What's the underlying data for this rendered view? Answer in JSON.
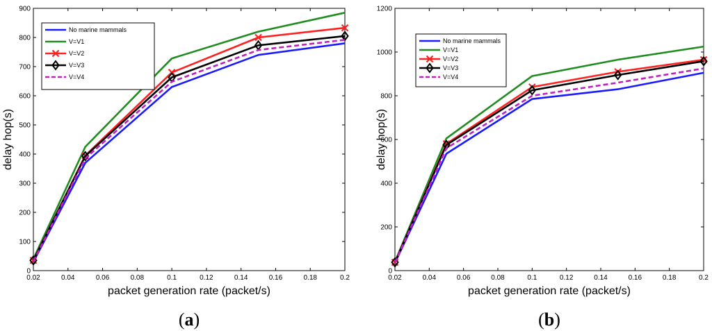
{
  "chart_data": [
    {
      "type": "line",
      "panel": "a",
      "caption": {
        "open": "(",
        "letter": "a",
        "close": ")"
      },
      "xlabel": "packet generation rate (packet/s)",
      "ylabel": "delay hop(s)",
      "xlim": [
        0.02,
        0.2
      ],
      "ylim": [
        0,
        900
      ],
      "xticks": [
        0.02,
        0.04,
        0.06,
        0.08,
        0.1,
        0.12,
        0.14,
        0.16,
        0.18,
        0.2
      ],
      "xtick_labels": [
        "0.02",
        "0.04",
        "0.06",
        "0.08",
        "0.1",
        "0.12",
        "0.14",
        "0.16",
        "0.18",
        "0.2"
      ],
      "yticks": [
        0,
        100,
        200,
        300,
        400,
        500,
        600,
        700,
        800,
        900
      ],
      "ytick_labels": [
        "0",
        "100",
        "200",
        "300",
        "400",
        "500",
        "600",
        "700",
        "800",
        "900"
      ],
      "x": [
        0.02,
        0.05,
        0.1,
        0.15,
        0.2
      ],
      "legend_position": "top-left",
      "series": [
        {
          "name": "No marine mammals",
          "color": "#1a1aff",
          "style": "solid",
          "marker": "none",
          "values": [
            30,
            370,
            630,
            740,
            780
          ]
        },
        {
          "name": "V=V1",
          "color": "#1f8c1f",
          "style": "solid",
          "marker": "none",
          "values": [
            40,
            425,
            728,
            820,
            885
          ]
        },
        {
          "name": "V=V2",
          "color": "#ff2020",
          "style": "solid",
          "marker": "x",
          "values": [
            35,
            395,
            680,
            800,
            833
          ]
        },
        {
          "name": "V=V3",
          "color": "#000000",
          "style": "solid",
          "marker": "diamond",
          "values": [
            35,
            393,
            663,
            773,
            805
          ]
        },
        {
          "name": "V=V4",
          "color": "#c020c0",
          "style": "dashed",
          "marker": "none",
          "values": [
            32,
            385,
            648,
            757,
            792
          ]
        }
      ]
    },
    {
      "type": "line",
      "panel": "b",
      "caption": {
        "open": "(",
        "letter": "b",
        "close": ")"
      },
      "xlabel": "packet generation rate (packet/s)",
      "ylabel": "delay hop(s)",
      "xlim": [
        0.02,
        0.2
      ],
      "ylim": [
        0,
        1200
      ],
      "xticks": [
        0.02,
        0.04,
        0.06,
        0.08,
        0.1,
        0.12,
        0.14,
        0.16,
        0.18,
        0.2
      ],
      "xtick_labels": [
        "0.02",
        "0.04",
        "0.06",
        "0.08",
        "0.1",
        "0.12",
        "0.14",
        "0.16",
        "0.18",
        "0.2"
      ],
      "yticks": [
        0,
        200,
        400,
        600,
        800,
        1000,
        1200
      ],
      "ytick_labels": [
        "0",
        "200",
        "400",
        "600",
        "800",
        "1000",
        "1200"
      ],
      "x": [
        0.02,
        0.05,
        0.1,
        0.15,
        0.2
      ],
      "legend_position": "top-left",
      "series": [
        {
          "name": "No marine mammals",
          "color": "#1a1aff",
          "style": "solid",
          "marker": "none",
          "values": [
            35,
            535,
            785,
            830,
            905
          ]
        },
        {
          "name": "V=V1",
          "color": "#1f8c1f",
          "style": "solid",
          "marker": "none",
          "values": [
            40,
            605,
            890,
            965,
            1025
          ]
        },
        {
          "name": "V=V2",
          "color": "#ff2020",
          "style": "solid",
          "marker": "x",
          "values": [
            38,
            580,
            840,
            910,
            965
          ]
        },
        {
          "name": "V=V3",
          "color": "#000000",
          "style": "solid",
          "marker": "diamond",
          "values": [
            38,
            575,
            825,
            895,
            958
          ]
        },
        {
          "name": "V=V4",
          "color": "#c020c0",
          "style": "dashed",
          "marker": "none",
          "values": [
            36,
            560,
            800,
            860,
            925
          ]
        }
      ]
    }
  ]
}
